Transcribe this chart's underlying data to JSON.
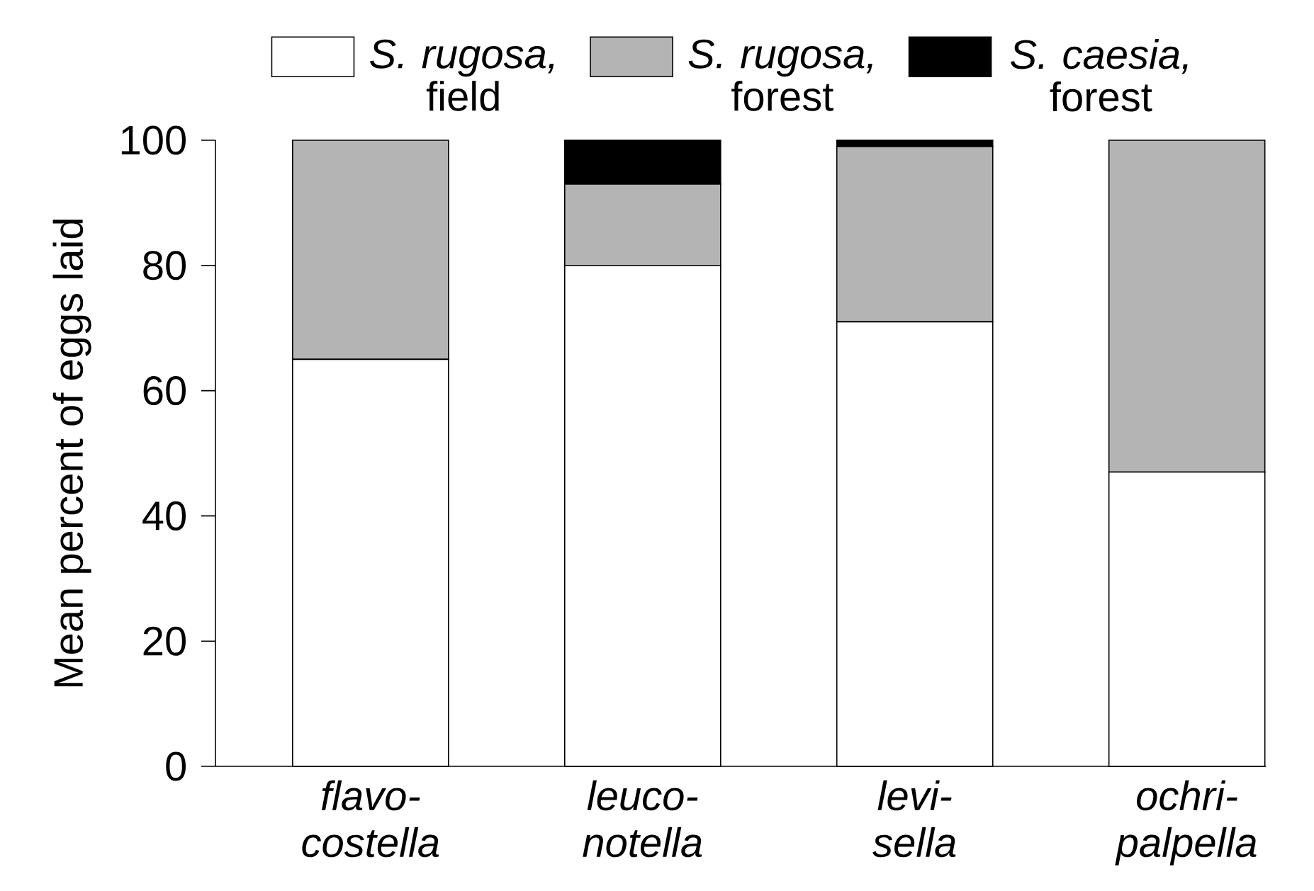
{
  "chart_data": {
    "type": "bar",
    "stacked": true,
    "ylabel": "Mean percent of eggs laid",
    "categories": [
      "flavo-costella",
      "leuco-notella",
      "levi-sella",
      "ochri-palpella"
    ],
    "series": [
      {
        "name": "*S. rugosa,* field",
        "color": "#ffffff",
        "values": [
          65,
          80,
          71,
          47
        ]
      },
      {
        "name": "*S. rugosa,* forest",
        "color": "#b4b4b4",
        "values": [
          35,
          13,
          28,
          53
        ]
      },
      {
        "name": "*S. caesia,* forest",
        "color": "#000000",
        "values": [
          0,
          7,
          1,
          0
        ]
      }
    ],
    "ylim": [
      0,
      100
    ],
    "yticks": [
      0,
      20,
      40,
      60,
      80,
      100
    ],
    "grid": false,
    "legend": "top"
  }
}
